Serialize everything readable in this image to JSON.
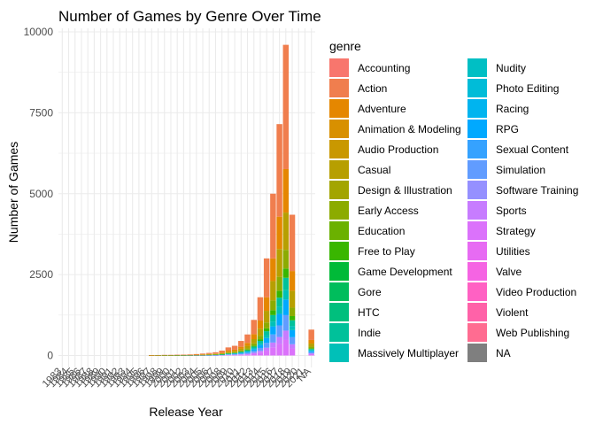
{
  "chart_data": {
    "type": "bar",
    "stacked": true,
    "title": "Number of Games by Genre Over Time",
    "xlabel": "Release Year",
    "ylabel": "Number of Games",
    "ylim": [
      0,
      10000
    ],
    "yticks": [
      0,
      2500,
      5000,
      7500,
      10000
    ],
    "ytick_labels": [
      "0",
      "2500",
      "5000",
      "7500",
      "10000"
    ],
    "grid": true,
    "legend_title": "genre",
    "legend_position": "right",
    "categories": [
      "1983",
      "1984",
      "1985",
      "1986",
      "1987",
      "1988",
      "1989",
      "1990",
      "1991",
      "1992",
      "1993",
      "1994",
      "1995",
      "1996",
      "1997",
      "1998",
      "1999",
      "2000",
      "2001",
      "2002",
      "2003",
      "2004",
      "2005",
      "2006",
      "2007",
      "2008",
      "2009",
      "2010",
      "2011",
      "2012",
      "2013",
      "2014",
      "2015",
      "2016",
      "2017",
      "2018",
      "2019",
      "2020",
      "2021",
      "NA"
    ],
    "tick_labels": [
      "1983",
      "1984",
      "1985",
      "1986",
      "1987",
      "1988",
      "1989",
      "1990",
      "1991",
      "1992",
      "1993",
      "1994",
      "1995",
      "1996",
      "1997",
      "1998",
      "1999",
      "2000",
      "2001",
      "2002",
      "2003",
      "2004",
      "2005",
      "2006",
      "2007",
      "2008",
      "2009",
      "2010",
      "2011",
      "2012",
      "2013",
      "2014",
      "2015",
      "2016",
      "2017",
      "2018",
      "2019",
      "2020",
      "2021",
      "NA"
    ],
    "totals": [
      0,
      0,
      0,
      0,
      0,
      0,
      0,
      0,
      0,
      0,
      0,
      0,
      0,
      0,
      10,
      15,
      20,
      20,
      25,
      30,
      35,
      45,
      60,
      80,
      100,
      150,
      250,
      300,
      450,
      650,
      1100,
      1800,
      3000,
      5000,
      7150,
      9600,
      4350,
      0,
      0,
      800
    ],
    "genres": [
      {
        "name": "Accounting",
        "color": "#F8766D"
      },
      {
        "name": "Action",
        "color": "#F07E4E"
      },
      {
        "name": "Adventure",
        "color": "#E58700"
      },
      {
        "name": "Animation & Modeling",
        "color": "#D89000"
      },
      {
        "name": "Audio Production",
        "color": "#C99800"
      },
      {
        "name": "Casual",
        "color": "#B79F00"
      },
      {
        "name": "Design & Illustration",
        "color": "#A3A500"
      },
      {
        "name": "Early Access",
        "color": "#8CAB00"
      },
      {
        "name": "Education",
        "color": "#6BB100"
      },
      {
        "name": "Free to Play",
        "color": "#39B600"
      },
      {
        "name": "Game Development",
        "color": "#00BA38"
      },
      {
        "name": "Gore",
        "color": "#00BD5C"
      },
      {
        "name": "HTC",
        "color": "#00BF7D"
      },
      {
        "name": "Indie",
        "color": "#00C19A"
      },
      {
        "name": "Massively Multiplayer",
        "color": "#00C0B8"
      },
      {
        "name": "Nudity",
        "color": "#00BFC4"
      },
      {
        "name": "Photo Editing",
        "color": "#00BCD8"
      },
      {
        "name": "Racing",
        "color": "#00B4EF"
      },
      {
        "name": "RPG",
        "color": "#00A9FF"
      },
      {
        "name": "Sexual Content",
        "color": "#35A2FF"
      },
      {
        "name": "Simulation",
        "color": "#619CFF"
      },
      {
        "name": "Software Training",
        "color": "#9590FF"
      },
      {
        "name": "Sports",
        "color": "#C77CFF"
      },
      {
        "name": "Strategy",
        "color": "#DB72FB"
      },
      {
        "name": "Utilities",
        "color": "#E76BF3"
      },
      {
        "name": "Valve",
        "color": "#F564E3"
      },
      {
        "name": "Video Production",
        "color": "#FF61C3"
      },
      {
        "name": "Violent",
        "color": "#FF62A8"
      },
      {
        "name": "Web Publishing",
        "color": "#FF6C91"
      },
      {
        "name": "NA",
        "color": "#7F7F7F"
      }
    ],
    "composition_fractions": {
      "Action": 0.4,
      "Adventure": 0.14,
      "Casual": 0.12,
      "Early Access": 0.06,
      "Free to Play": 0.03,
      "Indie": 0.04,
      "Massively Multiplayer": 0.03,
      "RPG": 0.05,
      "Simulation": 0.05,
      "Sports": 0.03,
      "Strategy": 0.05
    }
  }
}
